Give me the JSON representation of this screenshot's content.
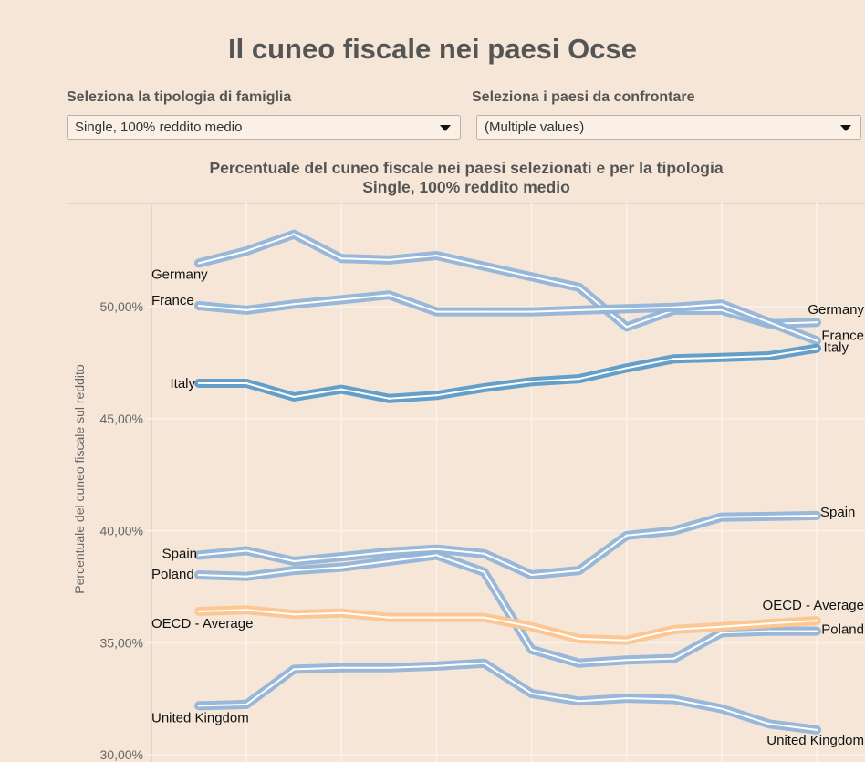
{
  "page_title": "Il cuneo fiscale nei paesi Ocse",
  "filters": {
    "family": {
      "label": "Seleziona la tipologia di famiglia",
      "value": "Single, 100% reddito medio"
    },
    "countries": {
      "label": "Seleziona i paesi da confrontare",
      "value": "(Multiple values)"
    }
  },
  "chart_data": {
    "type": "line",
    "title": "Percentuale del cuneo fiscale nei paesi selezionati e per la tipologia",
    "subtitle": "Single, 100% reddito medio",
    "xlabel": "",
    "ylabel": "Percentuale del cuneo fiscale sul reddito",
    "ylim": [
      29.9,
      54.6
    ],
    "yticks": [
      50,
      45,
      40,
      35,
      30
    ],
    "ytick_labels": [
      "50,00%",
      "45,00%",
      "40,00%",
      "35,00%",
      "30,00%"
    ],
    "grid": true,
    "points_per_series": 14,
    "series": [
      {
        "name": "Germany",
        "color": "#92b4d9",
        "values": [
          51.94,
          52.48,
          53.23,
          52.15,
          52.08,
          52.28,
          51.8,
          51.33,
          50.86,
          49.09,
          49.84,
          49.84,
          49.23,
          49.3
        ]
      },
      {
        "name": "France",
        "color": "#92b4d9",
        "values": [
          50.04,
          49.84,
          50.11,
          50.31,
          50.52,
          49.77,
          49.77,
          49.77,
          49.84,
          49.91,
          49.97,
          50.11,
          49.3,
          48.48
        ]
      },
      {
        "name": "Italy",
        "color": "#5b9bc8",
        "values": [
          46.58,
          46.58,
          45.97,
          46.31,
          45.9,
          46.04,
          46.38,
          46.65,
          46.78,
          47.26,
          47.67,
          47.73,
          47.8,
          48.14
        ]
      },
      {
        "name": "Spain",
        "color": "#92b4d9",
        "values": [
          38.91,
          39.11,
          38.64,
          38.84,
          39.05,
          39.18,
          38.98,
          38.03,
          38.23,
          39.79,
          40.0,
          40.61,
          40.64,
          40.68
        ]
      },
      {
        "name": "Poland",
        "color": "#92b4d9",
        "values": [
          38.03,
          37.96,
          38.23,
          38.37,
          38.64,
          38.91,
          38.16,
          34.7,
          34.09,
          34.23,
          34.3,
          35.45,
          35.52,
          35.52
        ]
      },
      {
        "name": "OECD - Average",
        "color": "#fdc590",
        "values": [
          36.4,
          36.47,
          36.27,
          36.33,
          36.13,
          36.13,
          36.13,
          35.72,
          35.18,
          35.11,
          35.59,
          35.72,
          35.86,
          35.99
        ]
      },
      {
        "name": "United Kingdom",
        "color": "#92b4d9",
        "values": [
          32.19,
          32.25,
          33.82,
          33.89,
          33.89,
          33.96,
          34.09,
          32.74,
          32.4,
          32.53,
          32.47,
          32.06,
          31.38,
          31.11
        ]
      }
    ]
  }
}
